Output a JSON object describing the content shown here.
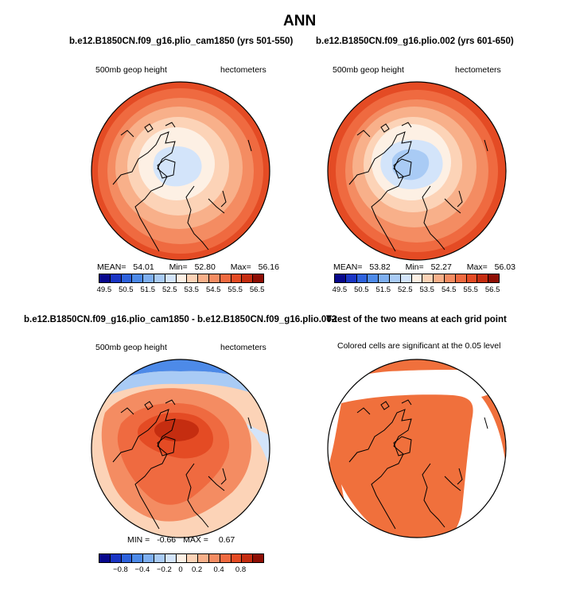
{
  "title": "ANN",
  "panels": {
    "p1": {
      "title": "b.e12.B1850CN.f09_g16.plio_cam1850 (yrs 501-550)",
      "left_label": "500mb geop height",
      "right_label": "hectometers",
      "stats": {
        "mean_label": "MEAN=",
        "mean": "54.01",
        "min_label": "Min=",
        "min": "52.80",
        "max_label": "Max=",
        "max": "56.16"
      }
    },
    "p2": {
      "title": "b.e12.B1850CN.f09_g16.plio.002 (yrs 601-650)",
      "left_label": "500mb geop height",
      "right_label": "hectometers",
      "stats": {
        "mean_label": "MEAN=",
        "mean": "53.82",
        "min_label": "Min=",
        "min": "52.27",
        "max_label": "Max=",
        "max": "56.03"
      }
    },
    "p3": {
      "title": "b.e12.B1850CN.f09_g16.plio_cam1850 - b.e12.B1850CN.f09_g16.plio.002",
      "left_label": "500mb geop height",
      "right_label": "hectometers",
      "stats": {
        "min_label": "MIN =",
        "min": "-0.66",
        "max_label": "MAX =",
        "max": "0.67"
      }
    },
    "p4": {
      "title": "T-test of the two means at each grid point",
      "label": "Colored cells are significant at the 0.05 level"
    }
  },
  "colorbar_top": {
    "ticks": [
      "49.5",
      "50.5",
      "51.5",
      "52.5",
      "53.5",
      "54.5",
      "55.5",
      "56.5"
    ]
  },
  "colorbar_diff": {
    "ticks": [
      "−0.8",
      "−0.4",
      "−0.2",
      "0",
      "0.2",
      "0.4",
      "0.8"
    ]
  },
  "colors": {
    "scale": [
      "#08088c",
      "#1a35c4",
      "#2e62dd",
      "#4d8ae8",
      "#7eaff0",
      "#a9cbf5",
      "#d3e4fa",
      "#fdf0e4",
      "#fcd3b7",
      "#f8b08a",
      "#f48c62",
      "#ef6a40",
      "#e44b24",
      "#c52d10",
      "#8e0e04"
    ],
    "significant": "#f0703c"
  }
}
